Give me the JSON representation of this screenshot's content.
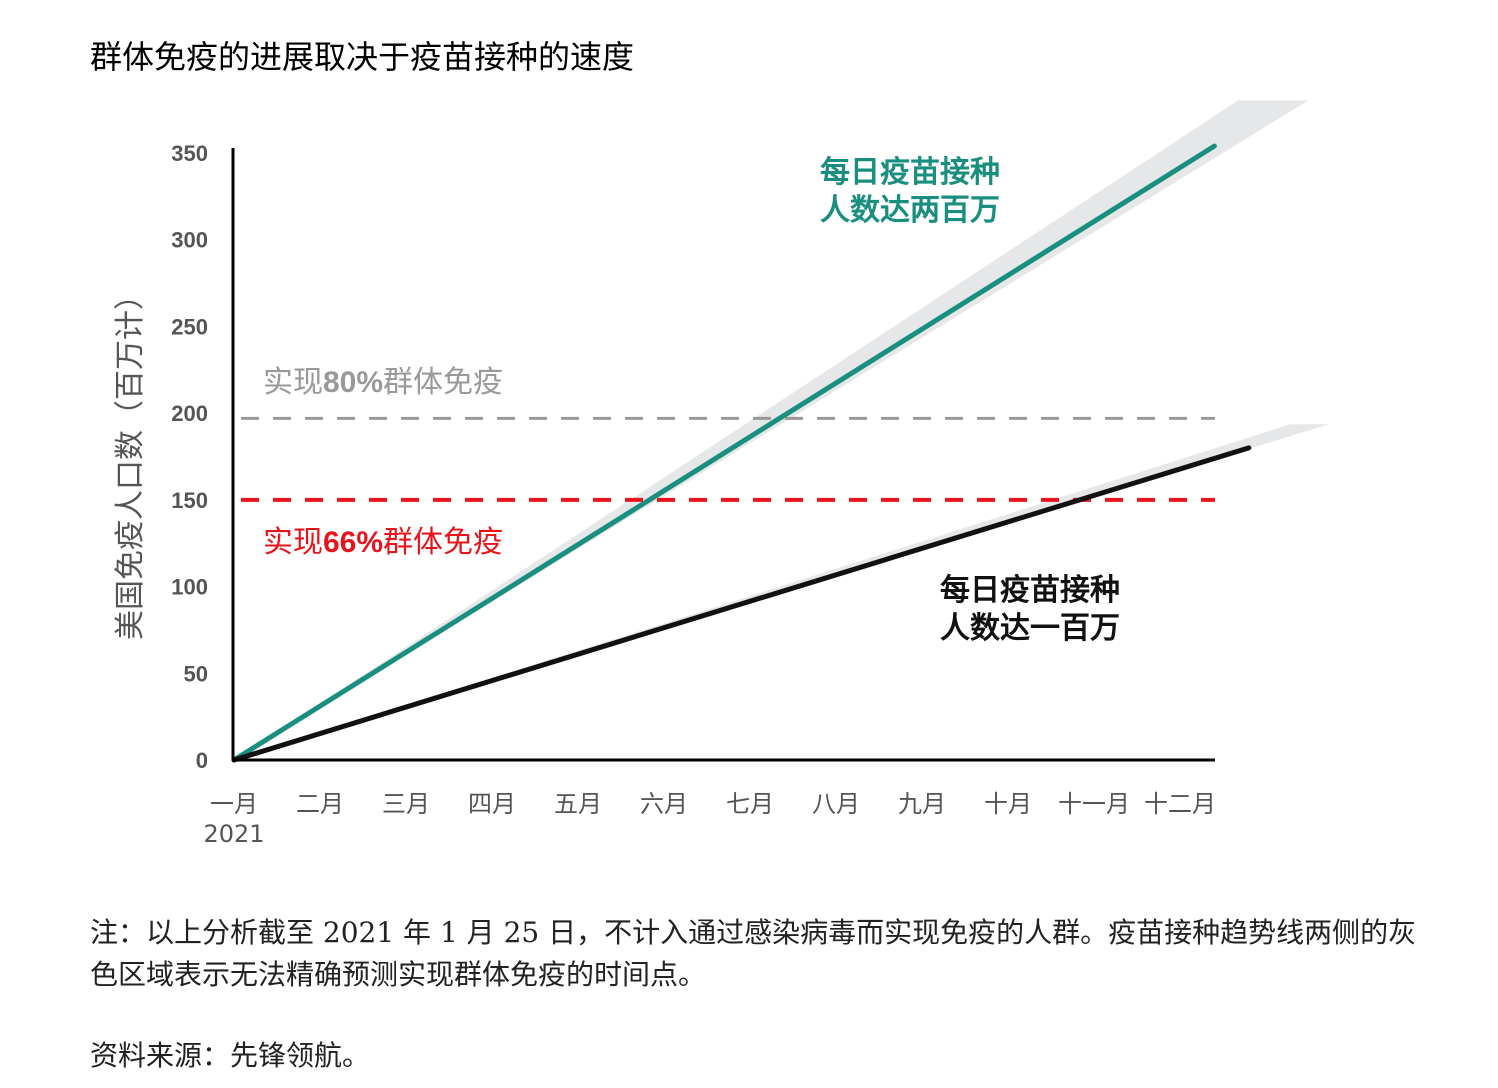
{
  "title": "群体免疫的进展取决于疫苗接种的速度",
  "note": "注：以上分析截至 2021 年 1 月 25 日，不计入通过感染病毒而实现免疫的人群。疫苗接种趋势线两侧的灰色区域表示无法精确预测实现群体免疫的时间点。",
  "source": "资料来源：先锋领航。",
  "chart_data": {
    "type": "line",
    "title": "群体免疫的进展取决于疫苗接种的速度",
    "ylabel": "美国免疫人口数（百万计）",
    "xlabel": "",
    "ylim": [
      0,
      350
    ],
    "yticks": [
      "0",
      "50",
      "100",
      "150",
      "200",
      "250",
      "300",
      "350"
    ],
    "categories": [
      "一月",
      "二月",
      "三月",
      "四月",
      "五月",
      "六月",
      "七月",
      "八月",
      "九月",
      "十月",
      "十一月",
      "十二月"
    ],
    "x_sub_label": "2021",
    "series": [
      {
        "name": "每日疫苗接种人数达两百万",
        "label_line1": "每日疫苗接种",
        "label_line2": "人数达两百万",
        "color": "#1a8f7f",
        "start": [
          0,
          0
        ],
        "end": [
          11.4,
          354
        ],
        "band_width": 22
      },
      {
        "name": "每日疫苗接种人数达一百万",
        "label_line1": "每日疫苗接种",
        "label_line2": "人数达一百万",
        "color": "#111111",
        "start": [
          0,
          0
        ],
        "end": [
          11.8,
          180
        ],
        "band_width": 12
      }
    ],
    "reference_lines": [
      {
        "label": "实现80%群体免疫",
        "label_prefix": "实现",
        "label_pct": "80%",
        "label_suffix": "群体免疫",
        "value": 197,
        "color": "#999999"
      },
      {
        "label": "实现66%群体免疫",
        "label_prefix": "实现",
        "label_pct": "66%",
        "label_suffix": "群体免疫",
        "value": 150,
        "color": "#e8141c"
      }
    ]
  }
}
